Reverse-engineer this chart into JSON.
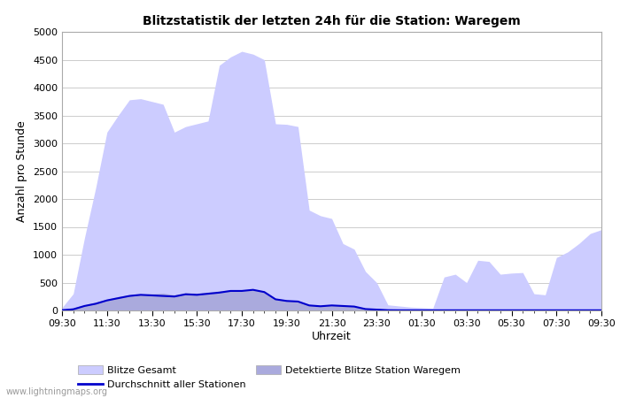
{
  "title": "Blitzstatistik der letzten 24h für die Station: Waregem",
  "xlabel": "Uhrzeit",
  "ylabel": "Anzahl pro Stunde",
  "watermark": "www.lightningmaps.org",
  "xlim_labels": [
    "09:30",
    "11:30",
    "13:30",
    "15:30",
    "17:30",
    "19:30",
    "21:30",
    "23:30",
    "01:30",
    "03:30",
    "05:30",
    "07:30",
    "09:30"
  ],
  "ylim": [
    0,
    5000
  ],
  "yticks": [
    0,
    500,
    1000,
    1500,
    2000,
    2500,
    3000,
    3500,
    4000,
    4500,
    5000
  ],
  "bg_color": "#ffffff",
  "grid_color": "#cccccc",
  "fill_gesamt_color": "#ccccff",
  "fill_station_color": "#aaaadd",
  "line_color": "#0000cc",
  "legend_label_gesamt": "Blitze Gesamt",
  "legend_label_avg": "Durchschnitt aller Stationen",
  "legend_label_station": "Detektierte Blitze Station Waregem",
  "time_steps": 49,
  "gesamt_values": [
    50,
    300,
    1300,
    2200,
    3200,
    3500,
    3780,
    3800,
    3750,
    3700,
    3200,
    3300,
    3350,
    3400,
    4400,
    4550,
    4650,
    4600,
    4500,
    3350,
    3340,
    3300,
    1800,
    1700,
    1650,
    1200,
    1100,
    700,
    500,
    100,
    80,
    60,
    50,
    40,
    600,
    650,
    500,
    900,
    880,
    650,
    670,
    680,
    300,
    280,
    950,
    1050,
    1200,
    1380,
    1450
  ],
  "station_values": [
    10,
    50,
    100,
    150,
    200,
    250,
    280,
    290,
    300,
    310,
    280,
    320,
    310,
    330,
    350,
    370,
    360,
    380,
    350,
    200,
    180,
    170,
    100,
    80,
    100,
    90,
    80,
    30,
    20,
    10,
    5,
    5,
    5,
    5,
    5,
    5,
    5,
    5,
    5,
    5,
    5,
    5,
    5,
    5,
    5,
    5,
    5,
    5,
    5
  ],
  "avg_values": [
    5,
    20,
    80,
    120,
    180,
    220,
    260,
    280,
    270,
    260,
    250,
    290,
    280,
    300,
    320,
    350,
    350,
    370,
    330,
    200,
    170,
    160,
    90,
    75,
    90,
    80,
    70,
    25,
    15,
    5,
    3,
    3,
    3,
    3,
    3,
    3,
    3,
    3,
    3,
    3,
    3,
    3,
    3,
    3,
    3,
    3,
    3,
    3,
    3
  ]
}
